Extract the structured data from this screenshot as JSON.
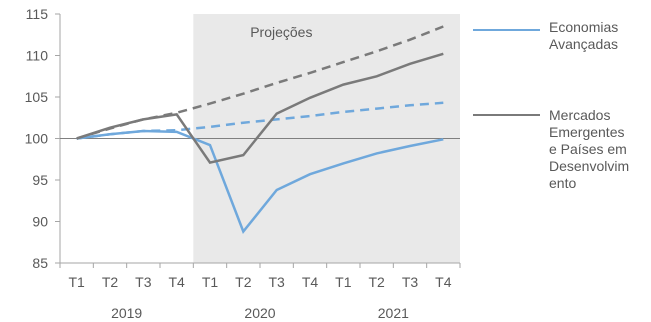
{
  "chart_data": {
    "type": "line",
    "title": "",
    "xlabel": "",
    "ylabel": "",
    "ylim": [
      85,
      115
    ],
    "yticks": [
      85,
      90,
      95,
      100,
      105,
      110,
      115
    ],
    "quarters": [
      "T1",
      "T2",
      "T3",
      "T4",
      "T1",
      "T2",
      "T3",
      "T4",
      "T1",
      "T2",
      "T3",
      "T4"
    ],
    "years": [
      "2019",
      "2020",
      "2021"
    ],
    "projection_label": "Projeções",
    "projection_range": [
      4,
      11
    ],
    "baseline": 100,
    "series": [
      {
        "name": "Economias Avançadas",
        "style": "solid",
        "color": "#6fa8dc",
        "values": [
          100,
          100.5,
          100.9,
          100.8,
          99.2,
          88.8,
          93.8,
          95.7,
          97.0,
          98.2,
          99.1,
          99.9
        ]
      },
      {
        "name": "Mercados Emergentes e Países em Desenvolvimento",
        "style": "solid",
        "color": "#7a7a7a",
        "values": [
          100,
          101.3,
          102.3,
          102.9,
          97.1,
          98.0,
          103.0,
          104.9,
          106.5,
          107.5,
          109.0,
          110.2
        ]
      },
      {
        "name": "",
        "style": "dashed",
        "color": "#6fa8dc",
        "values": [
          100,
          100.5,
          100.9,
          101.0,
          101.4,
          101.9,
          102.3,
          102.7,
          103.2,
          103.6,
          104.0,
          104.3
        ]
      },
      {
        "name": "",
        "style": "dashed",
        "color": "#7a7a7a",
        "values": [
          100,
          101.2,
          102.3,
          103.1,
          104.2,
          105.4,
          106.7,
          107.9,
          109.2,
          110.5,
          111.9,
          113.5
        ]
      }
    ],
    "legend": [
      {
        "lines": [
          "Economias",
          "Avançadas"
        ],
        "color": "#6fa8dc"
      },
      {
        "lines": [
          "Mercados",
          "Emergentes",
          "e Países em",
          "Desenvolvim",
          "ento"
        ],
        "color": "#7a7a7a"
      }
    ]
  }
}
